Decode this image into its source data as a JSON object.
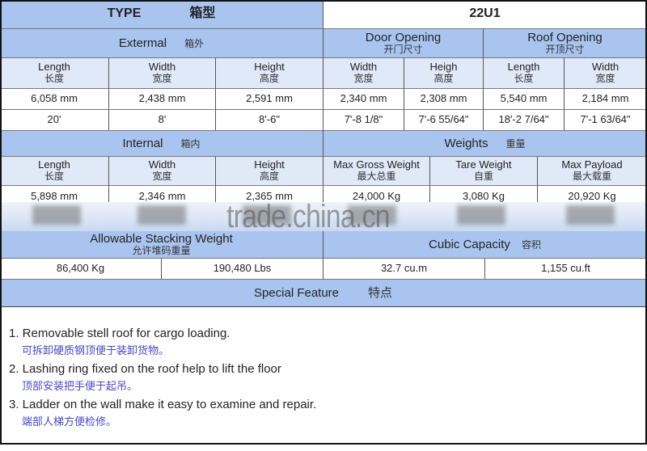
{
  "type": {
    "label": "TYPE",
    "label_zh": "箱型",
    "value": "22U1"
  },
  "external": {
    "title": "Extermal",
    "title_zh": "箱外",
    "columns": [
      {
        "en": "Length",
        "zh": "长度"
      },
      {
        "en": "Width",
        "zh": "宽度"
      },
      {
        "en": "Height",
        "zh": "高度"
      }
    ],
    "mm": [
      "6,058 mm",
      "2,438 mm",
      "2,591 mm"
    ],
    "ft": [
      "20'",
      "8'",
      "8'-6\""
    ]
  },
  "door_opening": {
    "title": "Door Opening",
    "title_zh": "开门尺寸",
    "columns": [
      {
        "en": "Width",
        "zh": "宽度"
      },
      {
        "en": "Heigh",
        "zh": "高度"
      }
    ],
    "mm": [
      "2,340 mm",
      "2,308 mm"
    ],
    "ft": [
      "7'-8 1/8\"",
      "7'-6 55/64\""
    ]
  },
  "roof_opening": {
    "title": "Roof Opening",
    "title_zh": "开顶尺寸",
    "columns": [
      {
        "en": "Length",
        "zh": "长度"
      },
      {
        "en": "Width",
        "zh": "宽度"
      }
    ],
    "mm": [
      "5,540 mm",
      "2,184 mm"
    ],
    "ft": [
      "18'-2 7/64\"",
      "7'-1 63/64\""
    ]
  },
  "internal": {
    "title": "Internal",
    "title_zh": "箱内",
    "columns": [
      {
        "en": "Length",
        "zh": "长度"
      },
      {
        "en": "Width",
        "zh": "宽度"
      },
      {
        "en": "Height",
        "zh": "高度"
      }
    ],
    "mm": [
      "5,898 mm",
      "2,346 mm",
      "2,365 mm"
    ]
  },
  "weights": {
    "title": "Weights",
    "title_zh": "重量",
    "columns": [
      {
        "en": "Max Gross Weight",
        "zh": "最大总重"
      },
      {
        "en": "Tare Weight",
        "zh": "自重"
      },
      {
        "en": "Max Payload",
        "zh": "最大载重"
      }
    ],
    "values": [
      "24,000 Kg",
      "3,080 Kg",
      "20,920 Kg"
    ]
  },
  "watermark": "trade.china.cn",
  "stacking": {
    "title": "Allowable Stacking Weight",
    "title_zh": "允许堆码重量",
    "values": [
      "86,400 Kg",
      "190,480 Lbs"
    ]
  },
  "cubic": {
    "title": "Cubic Capacity",
    "title_zh": "容积",
    "values": [
      "32.7 cu.m",
      "1,155 cu.ft"
    ]
  },
  "special": {
    "title": "Special Feature",
    "title_zh": "特点",
    "items": [
      {
        "en": "1. Removable stell roof for cargo loading.",
        "zh": "可拆卸硬质钢顶便于装卸货物。"
      },
      {
        "en": "2. Lashing ring fixed on the roof help to lift the floor",
        "zh": "顶部安装把手便于起吊。"
      },
      {
        "en": "3. Ladder on the wall make it easy to examine and repair.",
        "zh": "端部人梯方便检修。"
      }
    ]
  },
  "colors": {
    "header_blue": "#a9c5ef",
    "subheader_blue": "#dfe9f8",
    "chinese_text": "#4747c8"
  }
}
